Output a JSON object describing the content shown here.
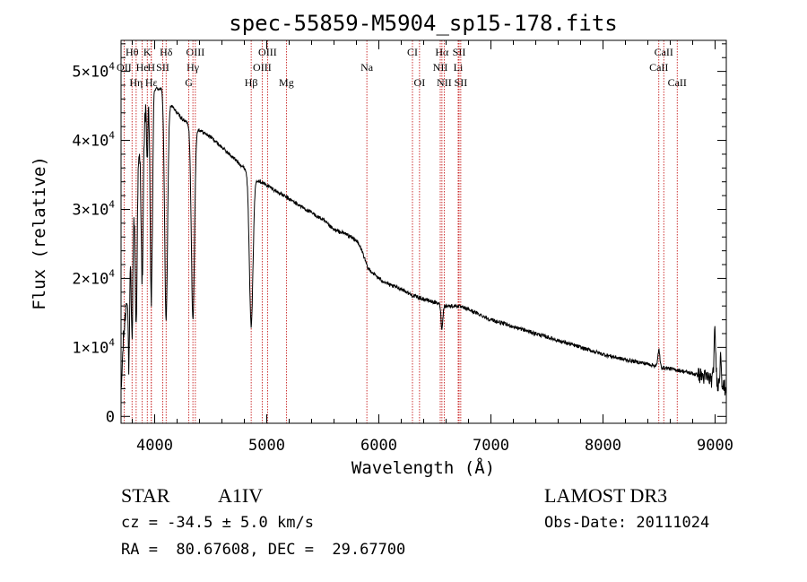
{
  "chart_data": {
    "type": "line",
    "title": "spec-55859-M5904_sp15-178.fits",
    "xlabel": "Wavelength (Å)",
    "ylabel": "Flux (relative)",
    "xlim": [
      3700,
      9100
    ],
    "ylim": [
      -1000,
      54500
    ],
    "x_ticks": [
      4000,
      5000,
      6000,
      7000,
      8000,
      9000
    ],
    "x_tick_labels": [
      "4000",
      "5000",
      "6000",
      "7000",
      "8000",
      "9000"
    ],
    "y_ticks": [
      0,
      10000,
      20000,
      30000,
      40000,
      50000
    ],
    "y_tick_mantissas": [
      "0",
      "1×10",
      "2×10",
      "3×10",
      "4×10",
      "5×10"
    ],
    "y_tick_exponent": "4",
    "continuum": [
      [
        3700,
        3000
      ],
      [
        3720,
        11000
      ],
      [
        3760,
        19000
      ],
      [
        3800,
        27000
      ],
      [
        3850,
        36000
      ],
      [
        3900,
        43000
      ],
      [
        3950,
        46000
      ],
      [
        4000,
        47500
      ],
      [
        4060,
        47500
      ],
      [
        4100,
        46000
      ],
      [
        4150,
        45000
      ],
      [
        4200,
        44000
      ],
      [
        4250,
        43000
      ],
      [
        4300,
        42500
      ],
      [
        4400,
        41500
      ],
      [
        4500,
        40500
      ],
      [
        4600,
        39000
      ],
      [
        4700,
        37500
      ],
      [
        4800,
        36000
      ],
      [
        4900,
        34500
      ],
      [
        5000,
        33500
      ],
      [
        5100,
        32500
      ],
      [
        5200,
        31500
      ],
      [
        5300,
        30500
      ],
      [
        5400,
        29500
      ],
      [
        5500,
        28500
      ],
      [
        5600,
        27000
      ],
      [
        5700,
        26500
      ],
      [
        5800,
        25500
      ],
      [
        5850,
        24000
      ],
      [
        5900,
        21500
      ],
      [
        6000,
        20000
      ],
      [
        6100,
        19000
      ],
      [
        6200,
        18500
      ],
      [
        6300,
        17500
      ],
      [
        6400,
        17000
      ],
      [
        6500,
        16500
      ],
      [
        6600,
        16000
      ],
      [
        6700,
        16000
      ],
      [
        6800,
        15500
      ],
      [
        7000,
        14000
      ],
      [
        7200,
        13000
      ],
      [
        7400,
        12000
      ],
      [
        7600,
        11000
      ],
      [
        7800,
        10000
      ],
      [
        8000,
        9000
      ],
      [
        8200,
        8200
      ],
      [
        8400,
        7600
      ],
      [
        8500,
        7200
      ],
      [
        8700,
        6600
      ],
      [
        8850,
        6000
      ],
      [
        8950,
        5500
      ],
      [
        9050,
        4500
      ],
      [
        9100,
        4000
      ]
    ],
    "absorption": [
      {
        "x": 3770,
        "depth": 14000,
        "width": 6
      },
      {
        "x": 3798,
        "depth": 15000,
        "width": 7
      },
      {
        "x": 3835,
        "depth": 20000,
        "width": 8
      },
      {
        "x": 3889,
        "depth": 22000,
        "width": 9
      },
      {
        "x": 3934,
        "depth": 8000,
        "width": 5
      },
      {
        "x": 3970,
        "depth": 30000,
        "width": 10
      },
      {
        "x": 4102,
        "depth": 32000,
        "width": 13
      },
      {
        "x": 4341,
        "depth": 28000,
        "width": 14
      },
      {
        "x": 4861,
        "depth": 22000,
        "width": 16
      },
      {
        "x": 6563,
        "depth": 3500,
        "width": 8
      }
    ],
    "emission": [
      {
        "x": 8498,
        "height": 2500,
        "width": 8
      },
      {
        "x": 8998,
        "height": 7000,
        "width": 8
      },
      {
        "x": 9050,
        "height": 5000,
        "width": 6
      }
    ],
    "line_markers": [
      {
        "label": "Hθ",
        "x": 3798,
        "row": 0
      },
      {
        "label": "K",
        "x": 3934,
        "row": 0
      },
      {
        "label": "Hδ",
        "x": 4102,
        "row": 0
      },
      {
        "label": "OIII",
        "x": 4363,
        "row": 0
      },
      {
        "label": "OIII",
        "x": 5007,
        "row": 0
      },
      {
        "label": "CI",
        "x": 6300,
        "row": 0
      },
      {
        "label": "Hα",
        "x": 6563,
        "row": 0
      },
      {
        "label": "SII",
        "x": 6716,
        "row": 0
      },
      {
        "label": "CaII",
        "x": 8542,
        "row": 0
      },
      {
        "label": "OII",
        "x": 3727,
        "row": 1
      },
      {
        "label": "He",
        "x": 3889,
        "row": 1
      },
      {
        "label": "H",
        "x": 3970,
        "row": 1
      },
      {
        "label": "SII",
        "x": 4072,
        "row": 1
      },
      {
        "label": "Hγ",
        "x": 4341,
        "row": 1
      },
      {
        "label": "OIII",
        "x": 4959,
        "row": 1
      },
      {
        "label": "Na",
        "x": 5893,
        "row": 1
      },
      {
        "label": "NII",
        "x": 6548,
        "row": 1
      },
      {
        "label": "Li",
        "x": 6708,
        "row": 1
      },
      {
        "label": "CaII",
        "x": 8498,
        "row": 1
      },
      {
        "label": "Hη",
        "x": 3835,
        "row": 2
      },
      {
        "label": "Hε",
        "x": 3970,
        "row": 2
      },
      {
        "label": "G",
        "x": 4305,
        "row": 2
      },
      {
        "label": "Hβ",
        "x": 4861,
        "row": 2
      },
      {
        "label": "Mg",
        "x": 5175,
        "row": 2
      },
      {
        "label": "OI",
        "x": 6363,
        "row": 2
      },
      {
        "label": "NII",
        "x": 6583,
        "row": 2
      },
      {
        "label": "SII",
        "x": 6731,
        "row": 2
      },
      {
        "label": "CaII",
        "x": 8662,
        "row": 2
      }
    ]
  },
  "info": {
    "object_class": "STAR",
    "subclass": "A1IV",
    "survey": "LAMOST DR3",
    "redshift_text": "cz = -34.5 ± 5.0 km/s",
    "obs_date": "Obs-Date: 20111024",
    "coords_text": "RA =  80.67608, DEC =  29.67700"
  },
  "colors": {
    "spectrum": "#000000",
    "marker_line": "#c00000",
    "axis": "#000000"
  }
}
